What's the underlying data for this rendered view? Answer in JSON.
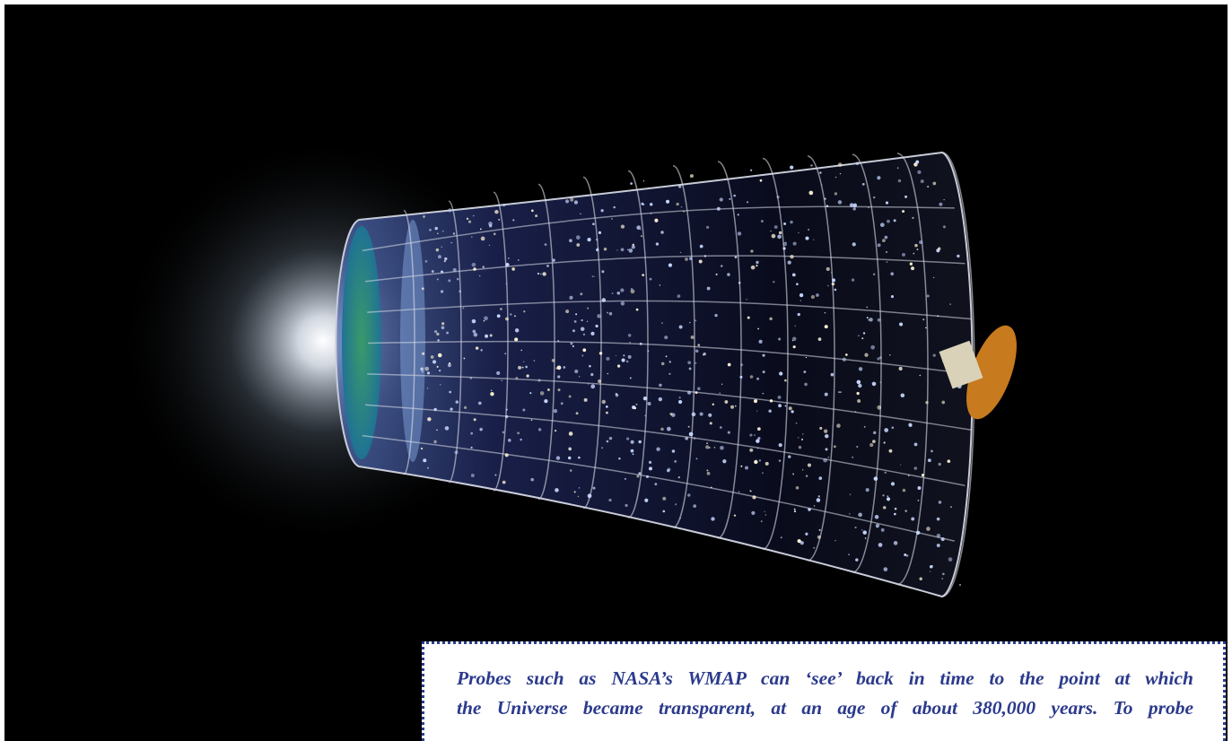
{
  "caption": {
    "lines": [
      "Probes such as NASA’s WMAP can ‘see’ back in time to the point at which",
      "the Universe became transparent, at an age of about 380,000 years. To probe"
    ]
  }
}
